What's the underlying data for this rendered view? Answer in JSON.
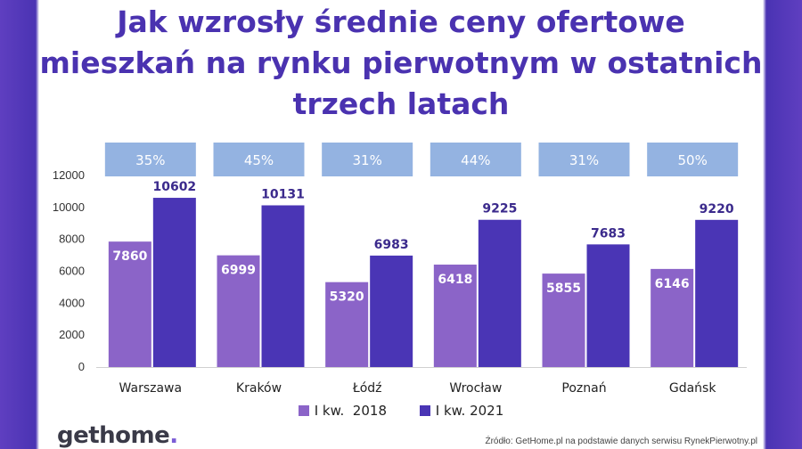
{
  "title": "Jak wzrosły średnie ceny ofertowe mieszkań na rynku pierwotnym w ostatnich trzech latach",
  "colors": {
    "series_2018": "#8b64c8",
    "series_2021": "#4a35b5",
    "pct_box": "#94b3e1",
    "title": "#4a32b0"
  },
  "logo": {
    "text": "gethome",
    "dot": "."
  },
  "source": "Źródło: GetHome.pl na podstawie danych serwisu RynekPierwotny.pl",
  "chart_data": {
    "type": "bar",
    "title": "Jak wzrosły średnie ceny ofertowe mieszkań na rynku pierwotnym w ostatnich trzech latach",
    "categories": [
      "Warszawa",
      "Kraków",
      "Łódź",
      "Wrocław",
      "Poznań",
      "Gdańsk"
    ],
    "series": [
      {
        "name": "I kw.  2018",
        "values": [
          7860,
          6999,
          5320,
          6418,
          5855,
          6146
        ]
      },
      {
        "name": "I kw. 2021",
        "values": [
          10602,
          10131,
          6983,
          9225,
          7683,
          9220
        ]
      }
    ],
    "growth": [
      "35%",
      "45%",
      "31%",
      "44%",
      "31%",
      "50%"
    ],
    "ylim": [
      0,
      12000
    ],
    "yticks": [
      0,
      2000,
      4000,
      6000,
      8000,
      10000,
      12000
    ],
    "xlabel": "",
    "ylabel": "",
    "grid": false,
    "legend": "bottom"
  }
}
